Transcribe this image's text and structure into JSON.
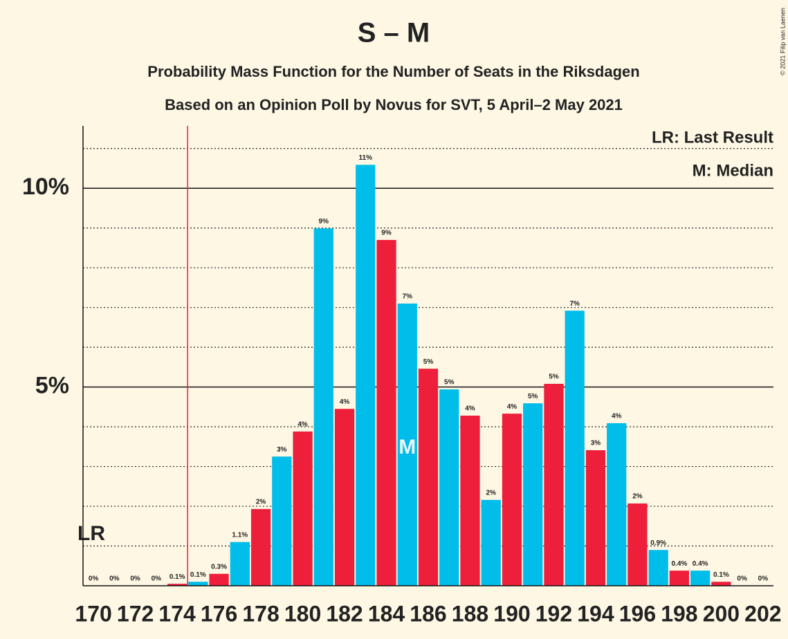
{
  "chart_data": {
    "type": "bar",
    "title": "S – M",
    "subtitle": "Probability Mass Function for the Number of Seats in the Riksdagen",
    "subtitle2": "Based on an Opinion Poll by Novus for SVT, 5 April–2 May 2021",
    "copyright": "© 2021 Filip van Laenen",
    "legend_last_result": "LR: Last Result",
    "legend_median": "M: Median",
    "last_result_marker": "LR",
    "median_marker": "M",
    "last_result": 175,
    "median": 185,
    "seats": [
      170,
      171,
      172,
      173,
      174,
      175,
      176,
      177,
      178,
      179,
      180,
      181,
      182,
      183,
      184,
      185,
      186,
      187,
      188,
      189,
      190,
      191,
      192,
      193,
      194,
      195,
      196,
      197,
      198,
      199,
      200,
      201,
      202
    ],
    "categories": [
      "170",
      null,
      "172",
      null,
      "174",
      null,
      "176",
      null,
      "178",
      null,
      "180",
      null,
      "182",
      null,
      "184",
      null,
      "186",
      null,
      "188",
      null,
      "190",
      null,
      "192",
      null,
      "194",
      null,
      "196",
      null,
      "198",
      null,
      "200",
      null,
      "202"
    ],
    "values": [
      0,
      0,
      0,
      0,
      0.05,
      0.1,
      0.3,
      1.1,
      1.93,
      3.25,
      3.88,
      8.99,
      4.45,
      10.59,
      8.7,
      7.1,
      5.46,
      4.94,
      4.28,
      2.16,
      4.33,
      4.59,
      5.08,
      6.92,
      3.41,
      4.09,
      2.07,
      0.9,
      0.38,
      0.38,
      0.1,
      0,
      0
    ],
    "value_labels": [
      "0%",
      "0%",
      "0%",
      "0%",
      "0.1%",
      "0.1%",
      "0.3%",
      "1.1%",
      "2%",
      "3%",
      "4%",
      "9%",
      "4%",
      "11%",
      "9%",
      "7%",
      "5%",
      "5%",
      "4%",
      "2%",
      "4%",
      "5%",
      "5%",
      "7%",
      "3%",
      "4%",
      "2%",
      "0.9%",
      "0.4%",
      "0.4%",
      "0.1%",
      "0%",
      "0%"
    ],
    "bar_colors": [
      "#ee1f3b",
      "#00bde9"
    ],
    "last_result_color": "#ee1f3b",
    "ylim": [
      0,
      11.57
    ],
    "yticks": [
      {
        "value": 5,
        "label": "5%"
      },
      {
        "value": 10,
        "label": "10%"
      }
    ],
    "minor_yticks": [
      1,
      2,
      3,
      4,
      6,
      7,
      8,
      9,
      11
    ]
  }
}
